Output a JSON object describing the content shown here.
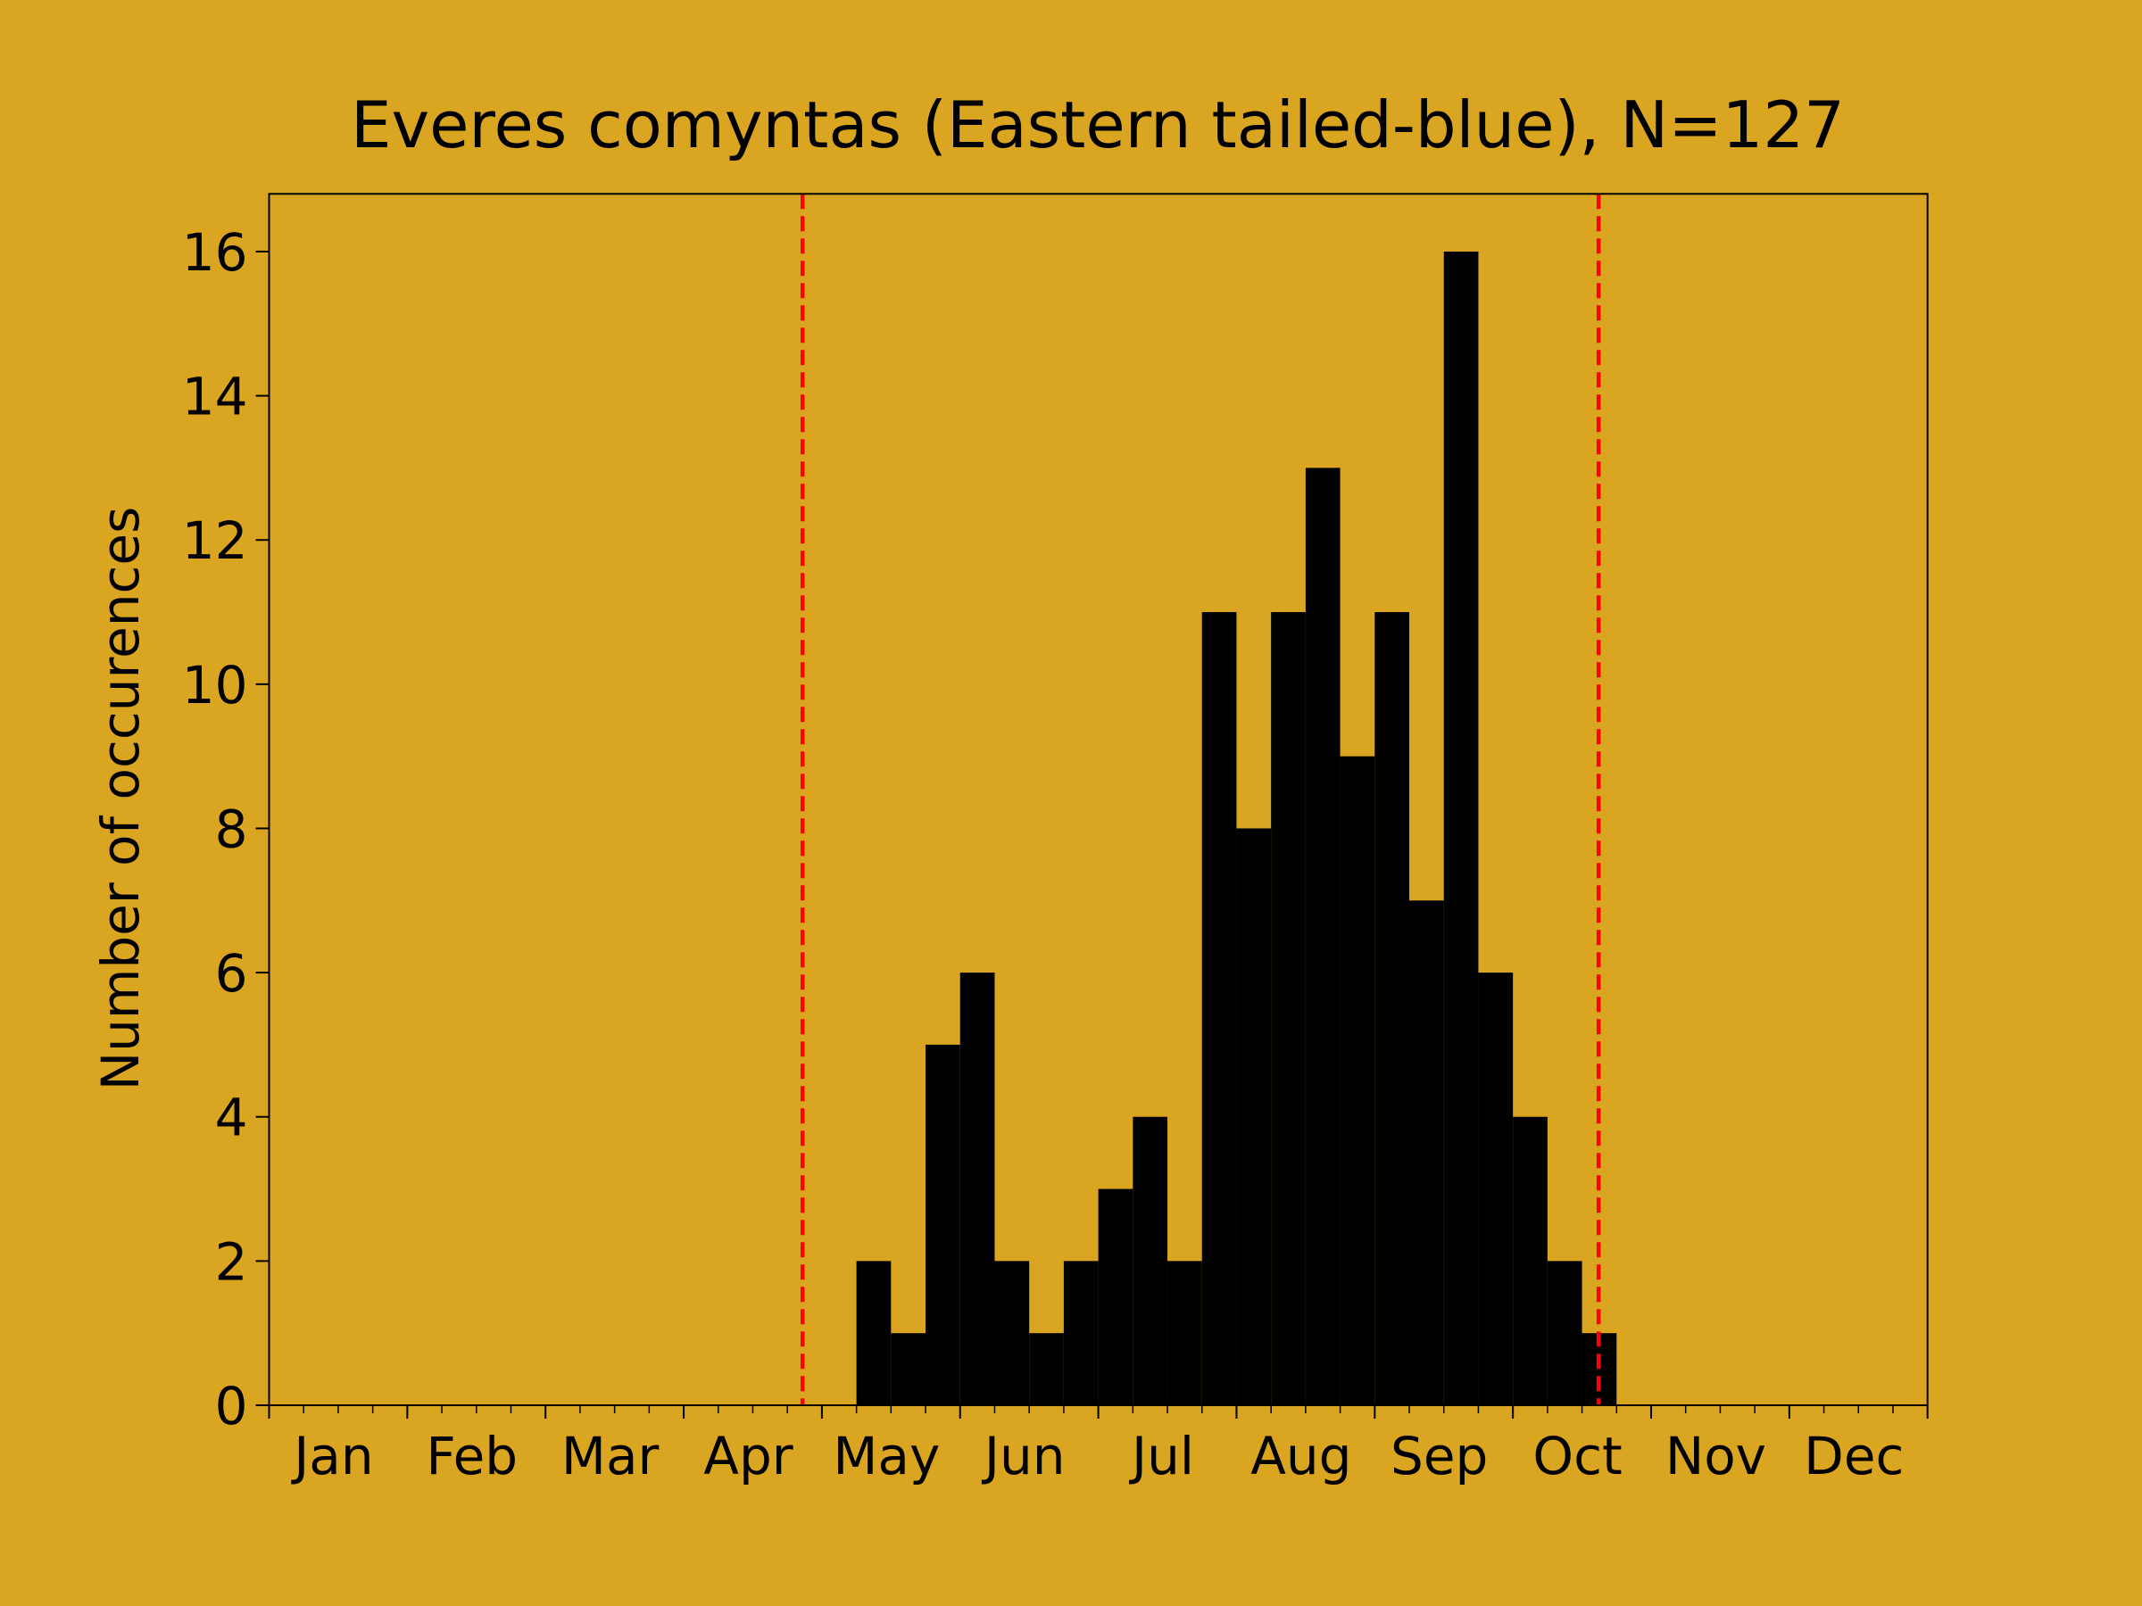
{
  "chart_data": {
    "type": "histogram",
    "title": "Everes comyntas (Eastern tailed-blue), N=127",
    "ylabel": "Number of occurences",
    "bins": [
      4.25,
      4.5,
      4.75,
      5,
      5.25,
      5.5,
      5.75,
      6,
      6.25,
      6.5,
      6.75,
      7,
      7.25,
      7.5,
      7.75,
      8,
      8.25,
      8.5,
      8.75,
      9,
      9.25,
      9.5,
      9.75
    ],
    "counts": [
      2,
      1,
      5,
      6,
      2,
      1,
      2,
      3,
      4,
      2,
      11,
      8,
      11,
      13,
      9,
      11,
      7,
      16,
      6,
      4,
      2,
      1
    ],
    "color": "#000000",
    "background": "#daa520",
    "xlim": [
      0,
      12
    ],
    "ylim": [
      0,
      16.8
    ],
    "yticks": [
      0,
      2,
      4,
      6,
      8,
      10,
      12,
      14,
      16
    ],
    "xmajor": [
      0,
      1,
      2,
      3,
      4,
      5,
      6,
      7,
      8,
      9,
      10,
      11,
      12
    ],
    "minor_tick_step": 0.25,
    "xticks": [
      {
        "value": 0.5,
        "label": "Jan"
      },
      {
        "value": 1.5,
        "label": "Feb"
      },
      {
        "value": 2.5,
        "label": "Mar"
      },
      {
        "value": 3.5,
        "label": "Apr"
      },
      {
        "value": 4.5,
        "label": "May"
      },
      {
        "value": 5.5,
        "label": "Jun"
      },
      {
        "value": 6.5,
        "label": "Jul"
      },
      {
        "value": 7.5,
        "label": "Aug"
      },
      {
        "value": 8.5,
        "label": "Sep"
      },
      {
        "value": 9.5,
        "label": "Oct"
      },
      {
        "value": 10.5,
        "label": "Nov"
      },
      {
        "value": 11.5,
        "label": "Dec"
      }
    ],
    "vlines": [
      {
        "x": 3.86,
        "color": "#ff0000"
      },
      {
        "x": 9.62,
        "color": "#ff0000"
      }
    ]
  }
}
